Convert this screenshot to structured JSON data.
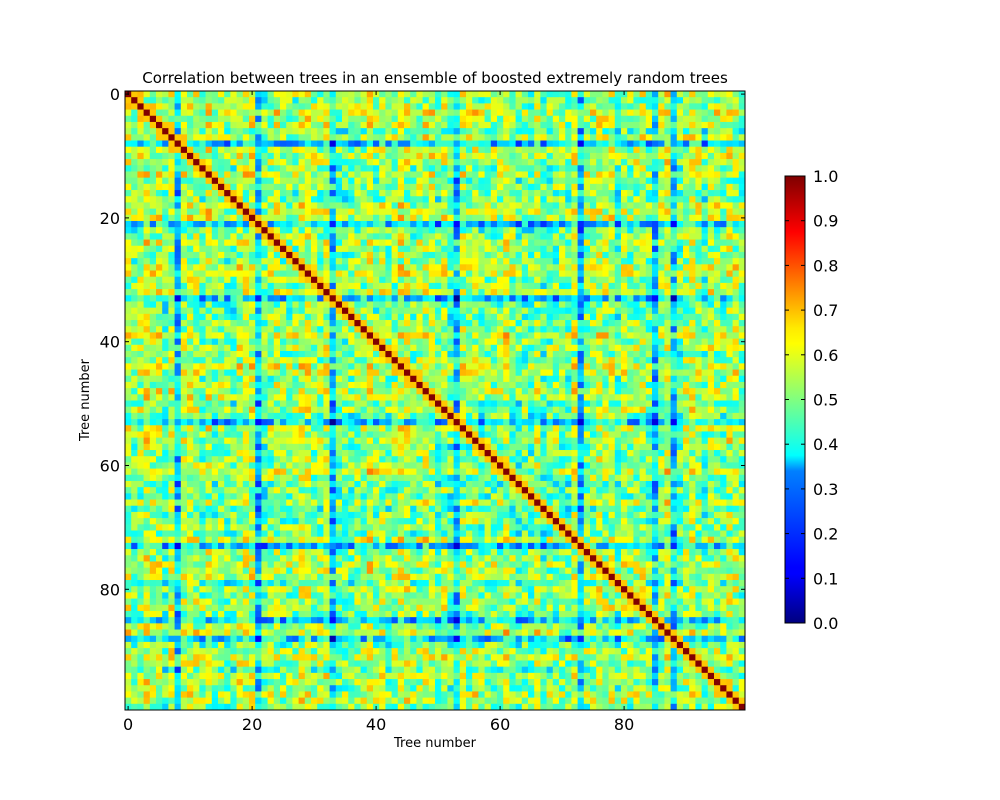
{
  "chart_data": {
    "type": "heatmap",
    "title": "Correlation between trees in an ensemble of boosted extremely random trees",
    "xlabel": "Tree number",
    "ylabel": "Tree number",
    "n": 100,
    "xlim": [
      0,
      99
    ],
    "ylim": [
      99,
      0
    ],
    "x_ticks": [
      0,
      20,
      40,
      60,
      80
    ],
    "y_ticks": [
      0,
      20,
      40,
      60,
      80
    ],
    "colormap": "jet",
    "colorbar": {
      "range": [
        0.0,
        1.0
      ],
      "ticks": [
        "1.0",
        "0.9",
        "0.8",
        "0.7",
        "0.6",
        "0.5",
        "0.4",
        "0.3",
        "0.2",
        "0.1",
        "0.0"
      ]
    },
    "diagonal_value": 1.0,
    "typical_offdiagonal_range": [
      0.3,
      0.75
    ],
    "low_correlation_trees": [
      8,
      73,
      88,
      85,
      33,
      53,
      21
    ],
    "colors": {
      "dark_blue": "#00007f",
      "blue": "#0000ff",
      "cyan": "#00ffff",
      "yellow": "#ffff00",
      "red": "#ff0000",
      "dark_red": "#7f0000"
    }
  }
}
